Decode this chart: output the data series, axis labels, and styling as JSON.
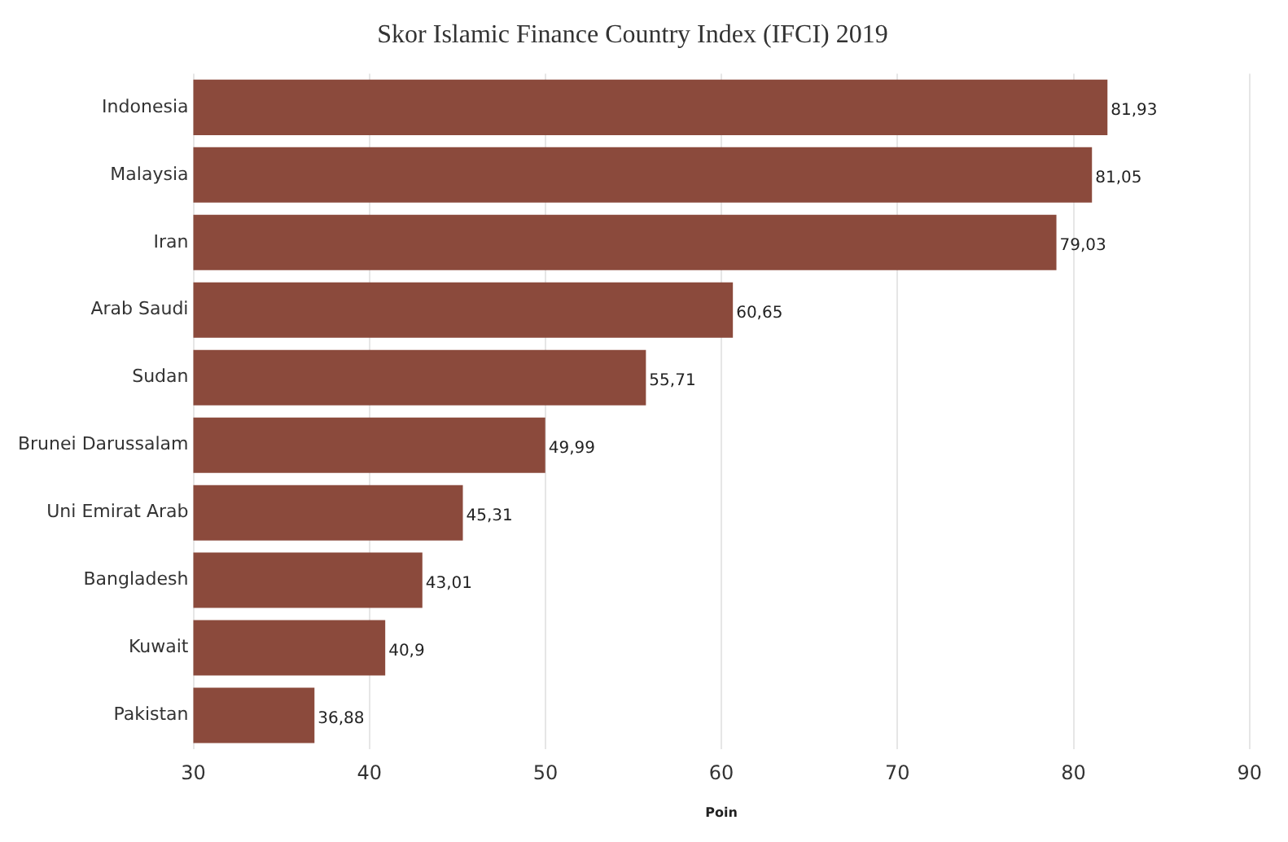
{
  "chart_data": {
    "type": "bar",
    "orientation": "horizontal",
    "title": "Skor Islamic Finance Country Index (IFCI) 2019",
    "xlabel": "Poin",
    "categories": [
      "Indonesia",
      "Malaysia",
      "Iran",
      "Arab Saudi",
      "Sudan",
      "Brunei Darussalam",
      "Uni Emirat Arab",
      "Bangladesh",
      "Kuwait",
      "Pakistan"
    ],
    "values": [
      81.93,
      81.05,
      79.03,
      60.65,
      55.71,
      49.99,
      45.31,
      43.01,
      40.9,
      36.88
    ],
    "value_labels": [
      "81,93",
      "81,05",
      "79,03",
      "60,65",
      "55,71",
      "49,99",
      "45,31",
      "43,01",
      "40,9",
      "36,88"
    ],
    "color": "#8b4a3c",
    "xlim": [
      30,
      90
    ],
    "xticks": [
      30,
      40,
      50,
      60,
      70,
      80,
      90
    ],
    "grid": "x",
    "legend": false
  }
}
